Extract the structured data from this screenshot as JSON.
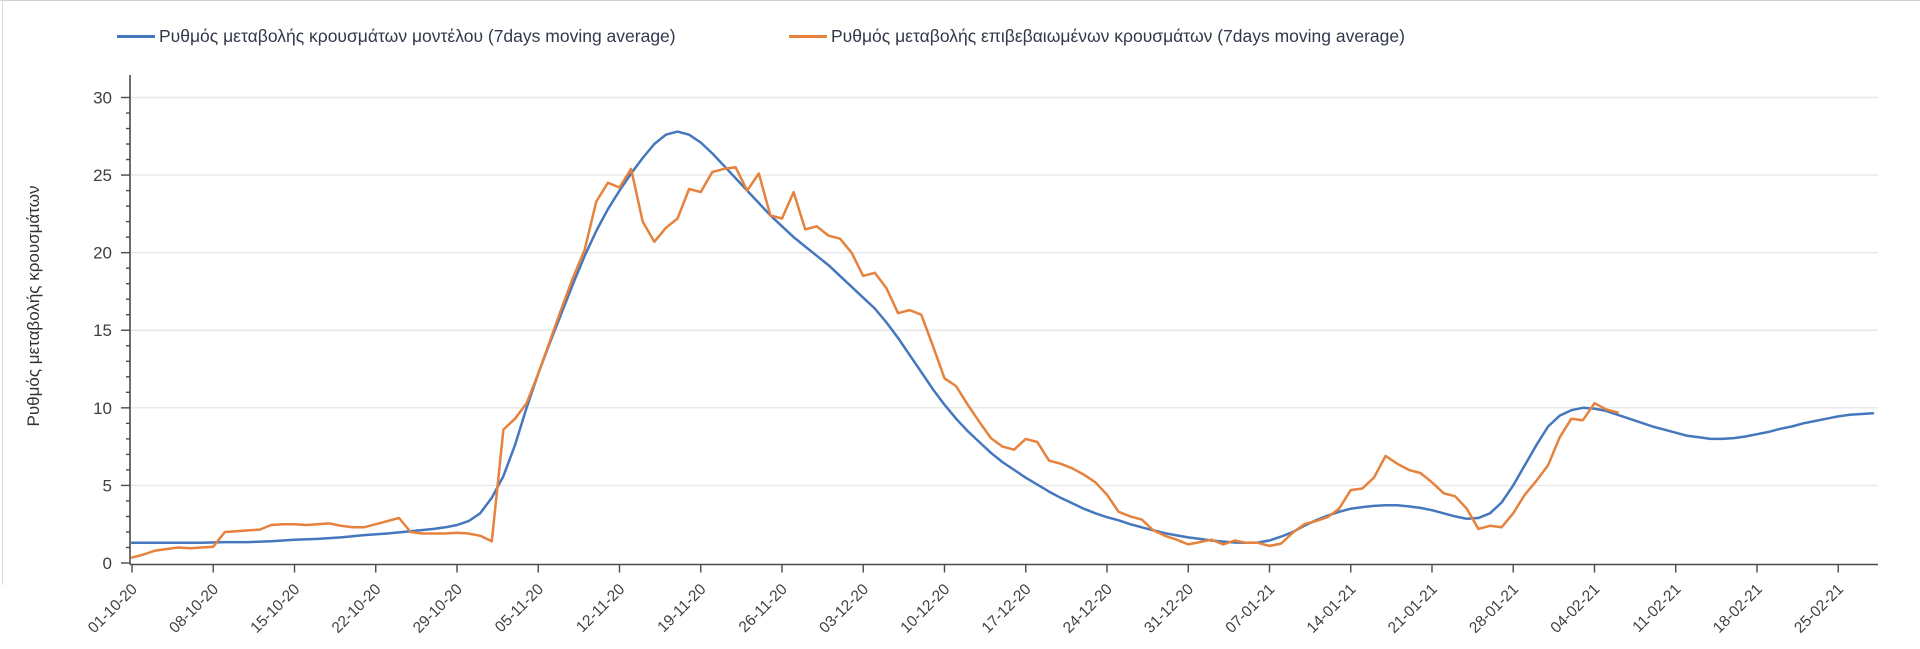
{
  "page": {
    "background": "#ffffff"
  },
  "colors": {
    "model_line": "#4577bd",
    "confirmed_line": "#e6823d",
    "grid": "#e8e8e8",
    "axis": "#4a4a4a"
  },
  "chart_data": {
    "type": "line",
    "title": "",
    "xlabel": "",
    "ylabel": "Ρυθμός μεταβολής κρουσμάτων",
    "ylim": [
      0,
      30
    ],
    "y_ticks": [
      0,
      5,
      10,
      15,
      20,
      25,
      30
    ],
    "y_minor_tick_step": 1,
    "grid": "horizontal",
    "legend_position": "top",
    "x_tick_interval_days": 7,
    "x_tick_labels": [
      "01-10-20",
      "08-10-20",
      "15-10-20",
      "22-10-20",
      "29-10-20",
      "05-11-20",
      "12-11-20",
      "19-11-20",
      "26-11-20",
      "03-12-20",
      "10-12-20",
      "17-12-20",
      "24-12-20",
      "31-12-20",
      "07-01-21",
      "14-01-21",
      "21-01-21",
      "28-01-21",
      "04-02-21",
      "11-02-21",
      "18-02-21",
      "25-02-21"
    ],
    "series": [
      {
        "name": "Ρυθμός μεταβολής κρουσμάτων μοντέλου (7days moving average)",
        "color": "#4577bd",
        "points": [
          [
            0,
            1.3
          ],
          [
            2,
            1.3
          ],
          [
            4,
            1.3
          ],
          [
            6,
            1.3
          ],
          [
            8,
            1.35
          ],
          [
            10,
            1.35
          ],
          [
            12,
            1.4
          ],
          [
            14,
            1.5
          ],
          [
            16,
            1.55
          ],
          [
            18,
            1.65
          ],
          [
            20,
            1.8
          ],
          [
            22,
            1.9
          ],
          [
            24,
            2.05
          ],
          [
            26,
            2.2
          ],
          [
            27,
            2.3
          ],
          [
            28,
            2.45
          ],
          [
            29,
            2.7
          ],
          [
            30,
            3.2
          ],
          [
            31,
            4.2
          ],
          [
            32,
            5.6
          ],
          [
            33,
            7.6
          ],
          [
            34,
            10.0
          ],
          [
            35,
            12.2
          ],
          [
            36,
            14.2
          ],
          [
            37,
            16.1
          ],
          [
            38,
            18.0
          ],
          [
            39,
            19.8
          ],
          [
            40,
            21.4
          ],
          [
            41,
            22.8
          ],
          [
            42,
            24.0
          ],
          [
            43,
            25.1
          ],
          [
            44,
            26.1
          ],
          [
            45,
            27.0
          ],
          [
            46,
            27.6
          ],
          [
            47,
            27.8
          ],
          [
            48,
            27.6
          ],
          [
            49,
            27.1
          ],
          [
            50,
            26.4
          ],
          [
            51,
            25.6
          ],
          [
            52,
            24.8
          ],
          [
            53,
            24.0
          ],
          [
            54,
            23.2
          ],
          [
            55,
            22.4
          ],
          [
            56,
            21.7
          ],
          [
            57,
            21.0
          ],
          [
            58,
            20.4
          ],
          [
            59,
            19.8
          ],
          [
            60,
            19.2
          ],
          [
            61,
            18.5
          ],
          [
            62,
            17.8
          ],
          [
            63,
            17.1
          ],
          [
            64,
            16.4
          ],
          [
            65,
            15.5
          ],
          [
            66,
            14.5
          ],
          [
            67,
            13.4
          ],
          [
            68,
            12.3
          ],
          [
            69,
            11.2
          ],
          [
            70,
            10.2
          ],
          [
            71,
            9.3
          ],
          [
            72,
            8.5
          ],
          [
            73,
            7.8
          ],
          [
            74,
            7.1
          ],
          [
            75,
            6.5
          ],
          [
            76,
            6.0
          ],
          [
            77,
            5.5
          ],
          [
            78,
            5.05
          ],
          [
            79,
            4.6
          ],
          [
            80,
            4.2
          ],
          [
            81,
            3.85
          ],
          [
            82,
            3.5
          ],
          [
            83,
            3.2
          ],
          [
            84,
            2.95
          ],
          [
            85,
            2.75
          ],
          [
            86,
            2.5
          ],
          [
            87,
            2.3
          ],
          [
            88,
            2.1
          ],
          [
            89,
            1.92
          ],
          [
            90,
            1.78
          ],
          [
            91,
            1.65
          ],
          [
            92,
            1.55
          ],
          [
            93,
            1.45
          ],
          [
            94,
            1.38
          ],
          [
            95,
            1.32
          ],
          [
            96,
            1.3
          ],
          [
            97,
            1.32
          ],
          [
            98,
            1.45
          ],
          [
            99,
            1.7
          ],
          [
            100,
            2.0
          ],
          [
            101,
            2.4
          ],
          [
            102,
            2.75
          ],
          [
            103,
            3.05
          ],
          [
            104,
            3.3
          ],
          [
            105,
            3.5
          ],
          [
            106,
            3.6
          ],
          [
            107,
            3.68
          ],
          [
            108,
            3.72
          ],
          [
            109,
            3.72
          ],
          [
            110,
            3.65
          ],
          [
            111,
            3.55
          ],
          [
            112,
            3.4
          ],
          [
            113,
            3.2
          ],
          [
            114,
            3.0
          ],
          [
            115,
            2.85
          ],
          [
            116,
            2.9
          ],
          [
            117,
            3.2
          ],
          [
            118,
            3.9
          ],
          [
            119,
            5.0
          ],
          [
            120,
            6.3
          ],
          [
            121,
            7.6
          ],
          [
            122,
            8.8
          ],
          [
            123,
            9.5
          ],
          [
            124,
            9.85
          ],
          [
            125,
            10.0
          ],
          [
            126,
            9.95
          ],
          [
            127,
            9.8
          ],
          [
            128,
            9.55
          ],
          [
            129,
            9.3
          ],
          [
            130,
            9.05
          ],
          [
            131,
            8.8
          ],
          [
            132,
            8.6
          ],
          [
            133,
            8.4
          ],
          [
            134,
            8.2
          ],
          [
            135,
            8.1
          ],
          [
            136,
            8.0
          ],
          [
            137,
            8.0
          ],
          [
            138,
            8.05
          ],
          [
            139,
            8.15
          ],
          [
            140,
            8.3
          ],
          [
            141,
            8.45
          ],
          [
            142,
            8.65
          ],
          [
            143,
            8.8
          ],
          [
            144,
            9.0
          ],
          [
            145,
            9.15
          ],
          [
            146,
            9.3
          ],
          [
            147,
            9.45
          ],
          [
            148,
            9.55
          ],
          [
            149,
            9.6
          ],
          [
            150,
            9.65
          ]
        ]
      },
      {
        "name": "Ρυθμός μεταβολής επιβεβαιωμένων κρουσμάτων (7days moving average)",
        "color": "#e6823d",
        "points": [
          [
            0,
            0.35
          ],
          [
            1,
            0.55
          ],
          [
            2,
            0.8
          ],
          [
            3,
            0.9
          ],
          [
            4,
            1.0
          ],
          [
            5,
            0.95
          ],
          [
            6,
            1.0
          ],
          [
            7,
            1.05
          ],
          [
            8,
            2.0
          ],
          [
            9,
            2.05
          ],
          [
            10,
            2.1
          ],
          [
            11,
            2.15
          ],
          [
            12,
            2.45
          ],
          [
            13,
            2.5
          ],
          [
            14,
            2.5
          ],
          [
            15,
            2.45
          ],
          [
            16,
            2.5
          ],
          [
            17,
            2.55
          ],
          [
            18,
            2.4
          ],
          [
            19,
            2.3
          ],
          [
            20,
            2.3
          ],
          [
            21,
            2.5
          ],
          [
            22,
            2.7
          ],
          [
            23,
            2.9
          ],
          [
            24,
            2.0
          ],
          [
            25,
            1.9
          ],
          [
            26,
            1.9
          ],
          [
            27,
            1.9
          ],
          [
            28,
            1.95
          ],
          [
            29,
            1.9
          ],
          [
            30,
            1.75
          ],
          [
            31,
            1.4
          ],
          [
            32,
            8.6
          ],
          [
            33,
            9.3
          ],
          [
            34,
            10.3
          ],
          [
            35,
            12.2
          ],
          [
            36,
            14.3
          ],
          [
            37,
            16.4
          ],
          [
            38,
            18.4
          ],
          [
            39,
            20.2
          ],
          [
            40,
            23.3
          ],
          [
            41,
            24.5
          ],
          [
            42,
            24.2
          ],
          [
            43,
            25.4
          ],
          [
            44,
            22.0
          ],
          [
            45,
            20.7
          ],
          [
            46,
            21.6
          ],
          [
            47,
            22.2
          ],
          [
            48,
            24.1
          ],
          [
            49,
            23.9
          ],
          [
            50,
            25.2
          ],
          [
            51,
            25.4
          ],
          [
            52,
            25.5
          ],
          [
            53,
            24.0
          ],
          [
            54,
            25.1
          ],
          [
            55,
            22.4
          ],
          [
            56,
            22.2
          ],
          [
            57,
            23.9
          ],
          [
            58,
            21.5
          ],
          [
            59,
            21.7
          ],
          [
            60,
            21.1
          ],
          [
            61,
            20.9
          ],
          [
            62,
            20.0
          ],
          [
            63,
            18.5
          ],
          [
            64,
            18.7
          ],
          [
            65,
            17.7
          ],
          [
            66,
            16.1
          ],
          [
            67,
            16.3
          ],
          [
            68,
            16.0
          ],
          [
            69,
            14.0
          ],
          [
            70,
            11.9
          ],
          [
            71,
            11.4
          ],
          [
            72,
            10.2
          ],
          [
            73,
            9.1
          ],
          [
            74,
            8.05
          ],
          [
            75,
            7.5
          ],
          [
            76,
            7.3
          ],
          [
            77,
            8.0
          ],
          [
            78,
            7.8
          ],
          [
            79,
            6.6
          ],
          [
            80,
            6.4
          ],
          [
            81,
            6.1
          ],
          [
            82,
            5.7
          ],
          [
            83,
            5.2
          ],
          [
            84,
            4.4
          ],
          [
            85,
            3.3
          ],
          [
            86,
            3.0
          ],
          [
            87,
            2.8
          ],
          [
            88,
            2.1
          ],
          [
            89,
            1.75
          ],
          [
            90,
            1.5
          ],
          [
            91,
            1.2
          ],
          [
            92,
            1.35
          ],
          [
            93,
            1.5
          ],
          [
            94,
            1.2
          ],
          [
            95,
            1.45
          ],
          [
            96,
            1.3
          ],
          [
            97,
            1.3
          ],
          [
            98,
            1.1
          ],
          [
            99,
            1.25
          ],
          [
            100,
            1.95
          ],
          [
            101,
            2.5
          ],
          [
            102,
            2.7
          ],
          [
            103,
            2.95
          ],
          [
            104,
            3.5
          ],
          [
            105,
            4.7
          ],
          [
            106,
            4.8
          ],
          [
            107,
            5.5
          ],
          [
            108,
            6.9
          ],
          [
            109,
            6.4
          ],
          [
            110,
            6.0
          ],
          [
            111,
            5.8
          ],
          [
            112,
            5.2
          ],
          [
            113,
            4.5
          ],
          [
            114,
            4.3
          ],
          [
            115,
            3.5
          ],
          [
            116,
            2.2
          ],
          [
            117,
            2.4
          ],
          [
            118,
            2.3
          ],
          [
            119,
            3.2
          ],
          [
            120,
            4.4
          ],
          [
            121,
            5.3
          ],
          [
            122,
            6.3
          ],
          [
            123,
            8.1
          ],
          [
            124,
            9.3
          ],
          [
            125,
            9.2
          ],
          [
            126,
            10.3
          ],
          [
            127,
            9.9
          ],
          [
            128,
            9.7
          ]
        ]
      }
    ]
  }
}
